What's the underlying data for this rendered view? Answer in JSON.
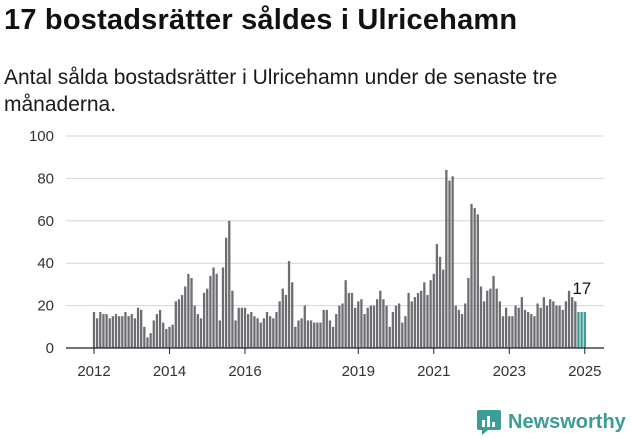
{
  "header": {
    "title": "17 bostadsrätter såldes i Ulricehamn",
    "subtitle": "Antal sålda bostadsrätter i Ulricehamn under de senaste tre månaderna."
  },
  "brand": {
    "name": "Newsworthy",
    "color": "#3a9d96",
    "icon": "bar-chart-logo-icon"
  },
  "chart_data": {
    "type": "bar",
    "title": "17 bostadsrätter såldes i Ulricehamn",
    "xlabel": "",
    "ylabel": "",
    "ylim": [
      0,
      100
    ],
    "yticks": [
      0,
      20,
      40,
      60,
      80,
      100
    ],
    "xticks": [
      {
        "label": "2012",
        "index": 0
      },
      {
        "label": "2014",
        "index": 24
      },
      {
        "label": "2016",
        "index": 48
      },
      {
        "label": "2019",
        "index": 84
      },
      {
        "label": "2021",
        "index": 108
      },
      {
        "label": "2023",
        "index": 132
      },
      {
        "label": "2025",
        "index": 156
      }
    ],
    "grid": true,
    "bar_color": "#6e6d72",
    "highlight_color": "#3a9d96",
    "annotation": {
      "index": 156,
      "label": "17"
    },
    "start": "2012-01",
    "interval": "month",
    "values": [
      17,
      14,
      17,
      16,
      16,
      14,
      15,
      16,
      15,
      15,
      17,
      15,
      16,
      14,
      19,
      18,
      10,
      5,
      7,
      13,
      16,
      18,
      12,
      9,
      10,
      11,
      22,
      23,
      25,
      29,
      35,
      33,
      20,
      16,
      14,
      26,
      28,
      34,
      38,
      35,
      13,
      38,
      52,
      60,
      27,
      13,
      19,
      19,
      19,
      16,
      17,
      15,
      14,
      12,
      14,
      17,
      15,
      14,
      17,
      22,
      28,
      25,
      41,
      31,
      10,
      13,
      14,
      20,
      13,
      13,
      12,
      12,
      12,
      18,
      18,
      13,
      10,
      16,
      20,
      21,
      32,
      26,
      26,
      19,
      22,
      23,
      16,
      19,
      20,
      20,
      23,
      27,
      23,
      20,
      10,
      17,
      20,
      21,
      12,
      15,
      26,
      22,
      24,
      26,
      27,
      31,
      25,
      32,
      35,
      49,
      43,
      37,
      84,
      79,
      81,
      20,
      18,
      16,
      21,
      33,
      68,
      66,
      63,
      29,
      22,
      27,
      28,
      34,
      28,
      22,
      15,
      19,
      15,
      15,
      20,
      19,
      24,
      18,
      17,
      16,
      15,
      21,
      19,
      24,
      20,
      23,
      22,
      20,
      20,
      18,
      22,
      27,
      24,
      22,
      17,
      17,
      17
    ],
    "highlight_from": 154
  }
}
